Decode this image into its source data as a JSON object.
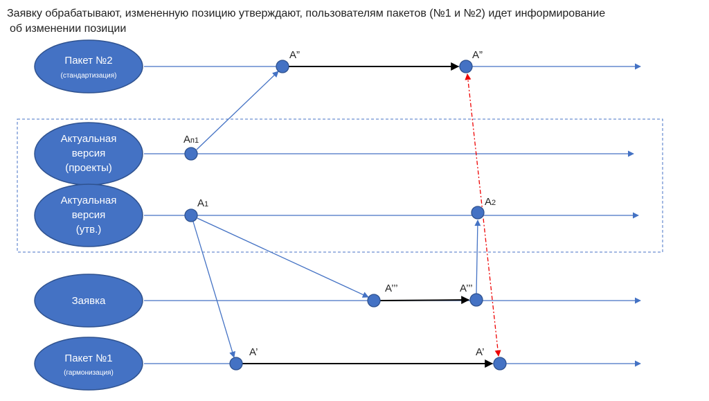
{
  "header": {
    "title_lines": [
      "Заявку обрабатывают, измененную позицию утверждают, пользователям пакетов (№1 и №2) идет информирование",
      "об изменении позиции"
    ]
  },
  "lanes": [
    {
      "lines": [
        "Пакет №2"
      ],
      "note": "(стандартизация)"
    },
    {
      "lines": [
        "Актуальная",
        "версия",
        "(проекты)"
      ]
    },
    {
      "lines": [
        "Актуальная",
        "версия",
        "(утв.)"
      ]
    },
    {
      "lines": [
        "Заявка"
      ]
    },
    {
      "lines": [
        "Пакет №1"
      ],
      "note": "(гармонизация)"
    }
  ],
  "nodes": [
    {
      "label": "А”"
    },
    {
      "label": "А”"
    },
    {
      "label": "А",
      "sub": "п1"
    },
    {
      "label": "А",
      "sub": "1"
    },
    {
      "label": "А",
      "sub": "2"
    },
    {
      "label": "А’’’"
    },
    {
      "label": "А’’’"
    },
    {
      "label": "А’"
    },
    {
      "label": "А’"
    }
  ]
}
